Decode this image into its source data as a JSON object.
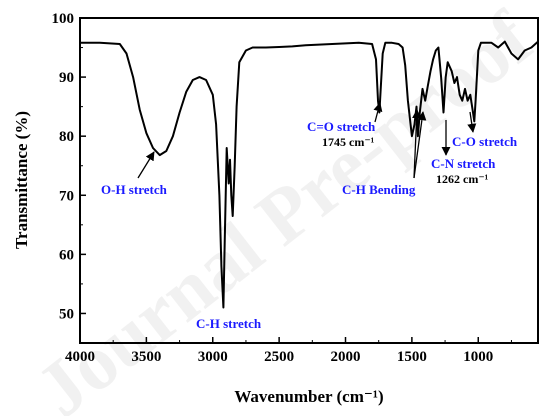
{
  "chart_data": {
    "type": "line",
    "title": "",
    "xlabel": "Wavenumber (cm⁻¹)",
    "ylabel": "Transmittance (%)",
    "xlim": [
      4000,
      550
    ],
    "ylim": [
      45,
      100
    ],
    "x_ticks": [
      "4000",
      "3500",
      "3000",
      "2500",
      "2000",
      "1500",
      "1000"
    ],
    "y_ticks": [
      "50",
      "60",
      "70",
      "80",
      "90",
      "100"
    ],
    "grid": false,
    "legend": "none",
    "series_color": "#000000",
    "annotation_color": "#1a1aff",
    "x": [
      4000,
      3850,
      3700,
      3650,
      3600,
      3550,
      3500,
      3450,
      3400,
      3350,
      3300,
      3250,
      3200,
      3150,
      3100,
      3050,
      3000,
      2975,
      2950,
      2935,
      2920,
      2910,
      2895,
      2880,
      2870,
      2860,
      2850,
      2835,
      2820,
      2800,
      2750,
      2700,
      2650,
      2600,
      2500,
      2400,
      2300,
      2200,
      2100,
      2000,
      1900,
      1800,
      1770,
      1755,
      1745,
      1735,
      1720,
      1700,
      1650,
      1600,
      1570,
      1550,
      1530,
      1500,
      1480,
      1465,
      1455,
      1440,
      1420,
      1400,
      1380,
      1360,
      1340,
      1320,
      1300,
      1280,
      1262,
      1245,
      1230,
      1200,
      1180,
      1160,
      1140,
      1120,
      1100,
      1080,
      1060,
      1040,
      1030,
      1020,
      1000,
      980,
      950,
      900,
      850,
      800,
      750,
      700,
      650,
      600,
      550
    ],
    "y": [
      95.8,
      95.8,
      95.6,
      94.0,
      90.0,
      84.5,
      80.5,
      78.0,
      76.8,
      77.5,
      80.0,
      84.0,
      87.5,
      89.5,
      90.0,
      89.5,
      87.0,
      82.0,
      70.0,
      58.0,
      51.0,
      62.0,
      78.0,
      72.0,
      76.0,
      70.0,
      66.5,
      75.0,
      85.0,
      92.5,
      94.5,
      95.0,
      95.0,
      95.0,
      95.1,
      95.2,
      95.4,
      95.5,
      95.6,
      95.7,
      95.8,
      95.6,
      93.0,
      86.0,
      84.0,
      88.0,
      94.0,
      95.8,
      95.8,
      95.6,
      95.0,
      92.0,
      86.0,
      80.0,
      82.0,
      85.0,
      80.0,
      84.0,
      88.0,
      86.0,
      88.5,
      91.0,
      93.0,
      94.5,
      95.0,
      90.0,
      84.0,
      90.0,
      92.5,
      91.0,
      89.0,
      90.0,
      87.0,
      86.0,
      88.0,
      86.0,
      87.0,
      84.0,
      82.5,
      86.0,
      94.5,
      95.8,
      95.8,
      95.8,
      95.0,
      96.0,
      94.0,
      93.0,
      94.5,
      95.0,
      96.0
    ],
    "annotations": [
      {
        "text": "O-H stretch",
        "color": "blue",
        "arrow_to": [
          3350,
          77
        ]
      },
      {
        "text": "C-H stretch",
        "color": "blue"
      },
      {
        "text": "C=O stretch",
        "color": "blue",
        "arrow_to": [
          1745,
          84
        ]
      },
      {
        "text": "1745 cm⁻¹",
        "color": "black"
      },
      {
        "text": "C-H Bending",
        "color": "blue",
        "arrow_to": [
          [
            1465,
            85
          ],
          [
            1425,
            88
          ]
        ]
      },
      {
        "text": "C-N stretch",
        "color": "blue",
        "arrow_to": [
          1262,
          84
        ]
      },
      {
        "text": "1262 cm⁻¹",
        "color": "black"
      },
      {
        "text": "C-O stretch",
        "color": "blue",
        "arrow_to": [
          1030,
          82.5
        ]
      }
    ]
  },
  "watermark": "Journal Pre-proof"
}
